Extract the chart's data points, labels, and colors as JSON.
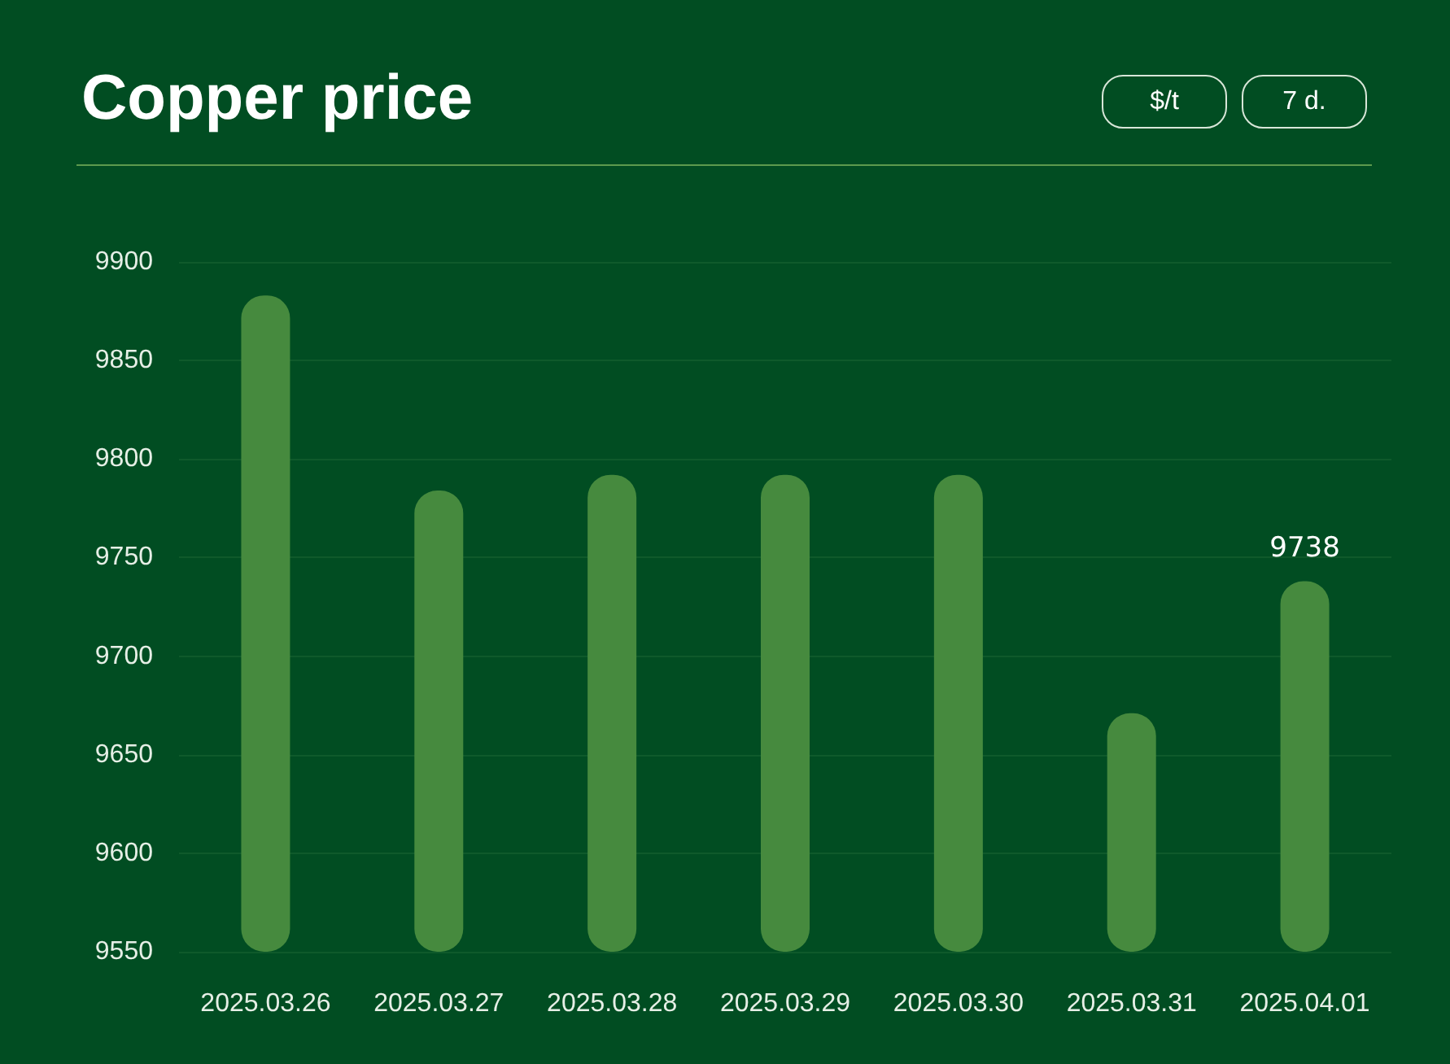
{
  "chart_data": {
    "type": "bar",
    "title": "Copper price",
    "categories": [
      "2025.03.26",
      "2025.03.27",
      "2025.03.28",
      "2025.03.29",
      "2025.03.30",
      "2025.03.31",
      "2025.04.01"
    ],
    "values": [
      9883,
      9784,
      9792,
      9792,
      9792,
      9671,
      9738
    ],
    "value_labels": [
      null,
      null,
      null,
      null,
      null,
      null,
      "9738"
    ],
    "color": "#468a3e",
    "ylim": [
      9550,
      9900
    ],
    "yticks": [
      9550,
      9600,
      9650,
      9700,
      9750,
      9800,
      9850,
      9900
    ],
    "grid": "y",
    "annotations": [
      "$/t",
      "7 d."
    ]
  }
}
